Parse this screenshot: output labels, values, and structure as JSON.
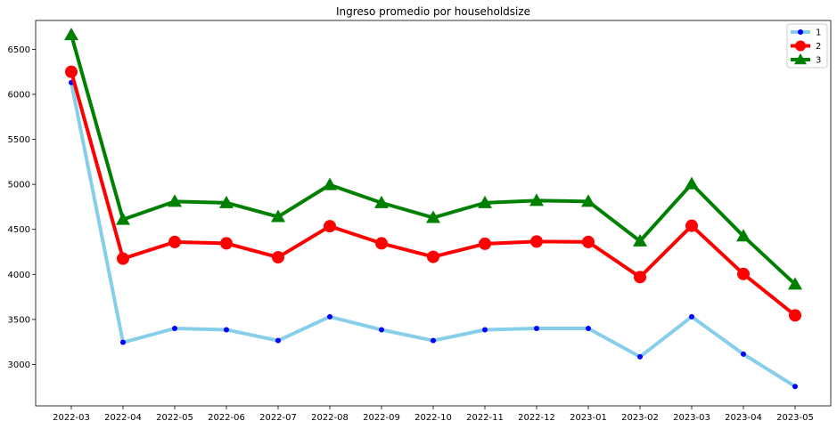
{
  "chart_data": {
    "type": "line",
    "title": "Ingreso promedio por householdsize",
    "xlabel": "",
    "ylabel": "",
    "categories": [
      "2022-03",
      "2022-04",
      "2022-05",
      "2022-06",
      "2022-07",
      "2022-08",
      "2022-09",
      "2022-10",
      "2022-11",
      "2022-12",
      "2023-01",
      "2023-02",
      "2023-03",
      "2023-04",
      "2023-05"
    ],
    "ylim": [
      2540,
      6820
    ],
    "yticks": [
      3000,
      3500,
      4000,
      4500,
      5000,
      5500,
      6000,
      6500
    ],
    "grid": false,
    "legend_position": "top-right",
    "series": [
      {
        "name": "1",
        "line_color": "#87ceeb",
        "marker_color": "#0000ff",
        "marker": "circle",
        "values": [
          6130,
          3245,
          3400,
          3385,
          3265,
          3530,
          3385,
          3265,
          3385,
          3400,
          3400,
          3085,
          3530,
          3115,
          2755
        ]
      },
      {
        "name": "2",
        "line_color": "#ff0000",
        "marker_color": "#ff0000",
        "marker": "circle",
        "values": [
          6250,
          4175,
          4360,
          4345,
          4190,
          4535,
          4345,
          4195,
          4340,
          4365,
          4360,
          3970,
          4540,
          4005,
          3545
        ]
      },
      {
        "name": "3",
        "line_color": "#008000",
        "marker_color": "#008000",
        "marker": "triangle",
        "values": [
          6660,
          4610,
          4810,
          4795,
          4640,
          4995,
          4795,
          4630,
          4795,
          4820,
          4810,
          4370,
          5005,
          4425,
          3890
        ]
      }
    ]
  }
}
